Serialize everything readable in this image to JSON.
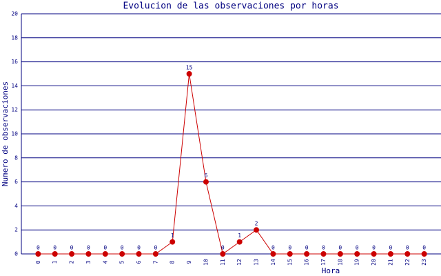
{
  "chart_data": {
    "type": "line",
    "title": "Evolucion de las observaciones por horas",
    "x_label": "Hora",
    "y_label": "Numero de observaciones",
    "categories": [
      "0",
      "1",
      "2",
      "3",
      "4",
      "5",
      "6",
      "7",
      "8",
      "9",
      "10",
      "11",
      "12",
      "13",
      "14",
      "15",
      "16",
      "17",
      "18",
      "19",
      "20",
      "21",
      "22",
      "23"
    ],
    "series": [
      {
        "name": "observaciones",
        "color": "#cc0000",
        "values": [
          0,
          0,
          0,
          0,
          0,
          0,
          0,
          0,
          1,
          15,
          6,
          0,
          1,
          2,
          0,
          0,
          0,
          0,
          0,
          0,
          0,
          0,
          0,
          0
        ]
      }
    ],
    "ylim": [
      0,
      20
    ],
    "yticks": [
      0,
      2,
      4,
      6,
      8,
      10,
      12,
      14,
      16,
      18,
      20
    ],
    "grid": true
  }
}
